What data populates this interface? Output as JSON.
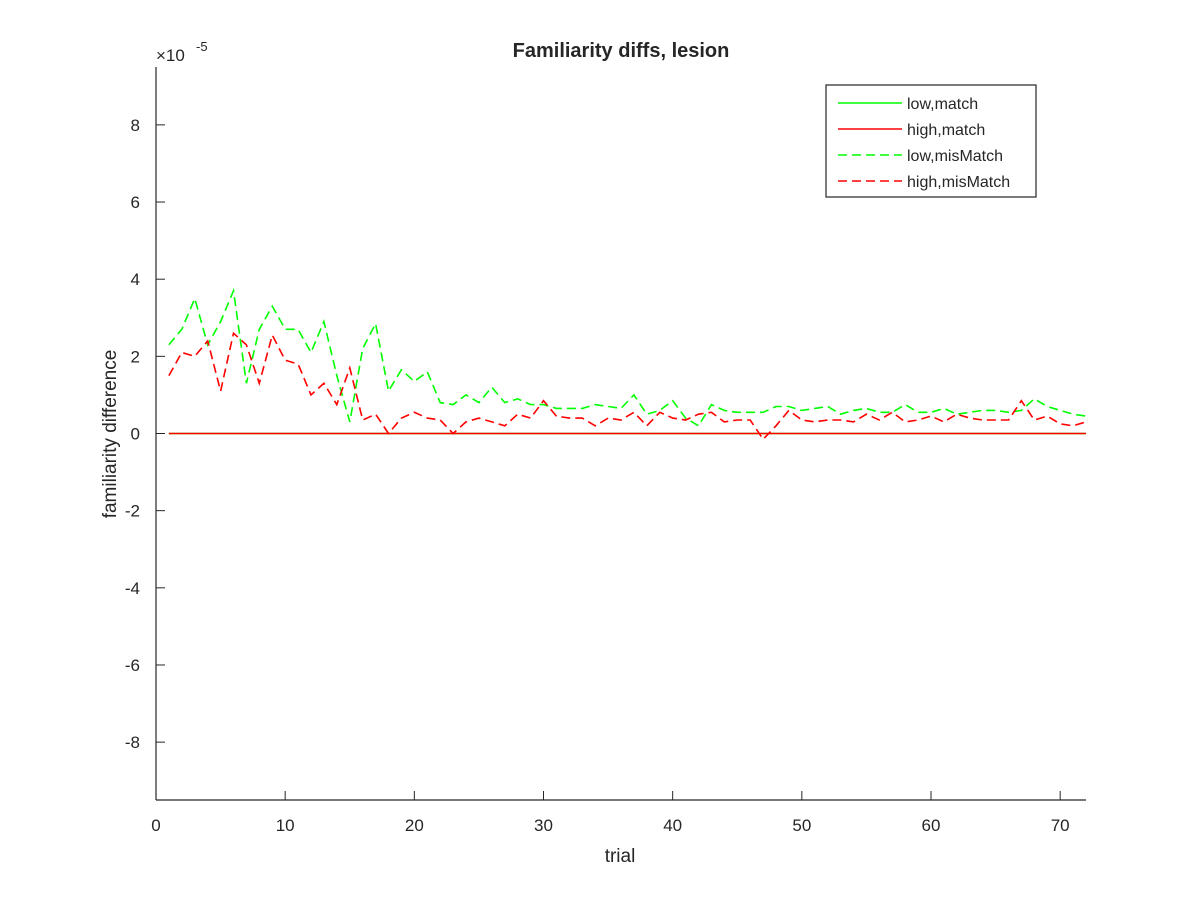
{
  "chart_data": {
    "type": "line",
    "title": "Familiarity diffs, lesion",
    "xlabel": "trial",
    "ylabel": "familiarity difference",
    "y_exponent_label": {
      "multiplier": "×10",
      "exponent": "-5"
    },
    "xlim": [
      0,
      72
    ],
    "ylim": [
      -9.5,
      9.5
    ],
    "x_ticks": [
      0,
      10,
      20,
      30,
      40,
      50,
      60,
      70
    ],
    "y_ticks": [
      -8,
      -6,
      -4,
      -2,
      0,
      2,
      4,
      6,
      8
    ],
    "grid": false,
    "legend_position": "top-right",
    "series": [
      {
        "name": "low,match",
        "color": "#00ff00",
        "style": "solid",
        "x": [
          1,
          72
        ],
        "y": [
          0,
          0
        ]
      },
      {
        "name": "high,match",
        "color": "#ff0000",
        "style": "solid",
        "x": [
          1,
          72
        ],
        "y": [
          0,
          0
        ]
      },
      {
        "name": "low,misMatch",
        "color": "#00ff00",
        "style": "dashed",
        "x": [
          1,
          2,
          3,
          4,
          5,
          6,
          7,
          8,
          9,
          10,
          11,
          12,
          13,
          14,
          15,
          16,
          17,
          18,
          19,
          20,
          21,
          22,
          23,
          24,
          25,
          26,
          27,
          28,
          29,
          30,
          31,
          32,
          33,
          34,
          35,
          36,
          37,
          38,
          39,
          40,
          41,
          42,
          43,
          44,
          45,
          46,
          47,
          48,
          49,
          50,
          51,
          52,
          53,
          54,
          55,
          56,
          57,
          58,
          59,
          60,
          61,
          62,
          63,
          64,
          65,
          66,
          67,
          68,
          69,
          70,
          71,
          72
        ],
        "y": [
          2.3,
          2.7,
          3.5,
          2.3,
          2.9,
          3.7,
          1.3,
          2.7,
          3.3,
          2.7,
          2.7,
          2.1,
          2.9,
          1.5,
          0.3,
          2.2,
          2.85,
          1.1,
          1.65,
          1.35,
          1.6,
          0.8,
          0.75,
          1.0,
          0.8,
          1.2,
          0.8,
          0.9,
          0.75,
          0.75,
          0.65,
          0.65,
          0.65,
          0.75,
          0.7,
          0.65,
          1.0,
          0.5,
          0.6,
          0.85,
          0.4,
          0.2,
          0.75,
          0.6,
          0.55,
          0.55,
          0.55,
          0.7,
          0.7,
          0.6,
          0.65,
          0.7,
          0.5,
          0.6,
          0.65,
          0.55,
          0.55,
          0.75,
          0.55,
          0.55,
          0.65,
          0.5,
          0.55,
          0.6,
          0.6,
          0.55,
          0.6,
          0.9,
          0.7,
          0.6,
          0.5,
          0.45
        ]
      },
      {
        "name": "high,misMatch",
        "color": "#ff0000",
        "style": "dashed",
        "x": [
          1,
          2,
          3,
          4,
          5,
          6,
          7,
          8,
          9,
          10,
          11,
          12,
          13,
          14,
          15,
          16,
          17,
          18,
          19,
          20,
          21,
          22,
          23,
          24,
          25,
          26,
          27,
          28,
          29,
          30,
          31,
          32,
          33,
          34,
          35,
          36,
          37,
          38,
          39,
          40,
          41,
          42,
          43,
          44,
          45,
          46,
          47,
          48,
          49,
          50,
          51,
          52,
          53,
          54,
          55,
          56,
          57,
          58,
          59,
          60,
          61,
          62,
          63,
          64,
          65,
          66,
          67,
          68,
          69,
          70,
          71,
          72
        ],
        "y": [
          1.5,
          2.1,
          2.0,
          2.4,
          1.1,
          2.6,
          2.3,
          1.3,
          2.55,
          1.9,
          1.8,
          1.0,
          1.3,
          0.75,
          1.7,
          0.35,
          0.5,
          0.0,
          0.4,
          0.55,
          0.4,
          0.35,
          0.0,
          0.3,
          0.4,
          0.3,
          0.2,
          0.5,
          0.4,
          0.85,
          0.45,
          0.4,
          0.4,
          0.2,
          0.4,
          0.35,
          0.55,
          0.2,
          0.55,
          0.4,
          0.35,
          0.5,
          0.55,
          0.3,
          0.35,
          0.35,
          -0.15,
          0.2,
          0.6,
          0.35,
          0.3,
          0.35,
          0.35,
          0.3,
          0.5,
          0.35,
          0.55,
          0.3,
          0.35,
          0.45,
          0.3,
          0.5,
          0.4,
          0.35,
          0.35,
          0.35,
          0.85,
          0.35,
          0.45,
          0.25,
          0.2,
          0.3
        ]
      }
    ]
  }
}
